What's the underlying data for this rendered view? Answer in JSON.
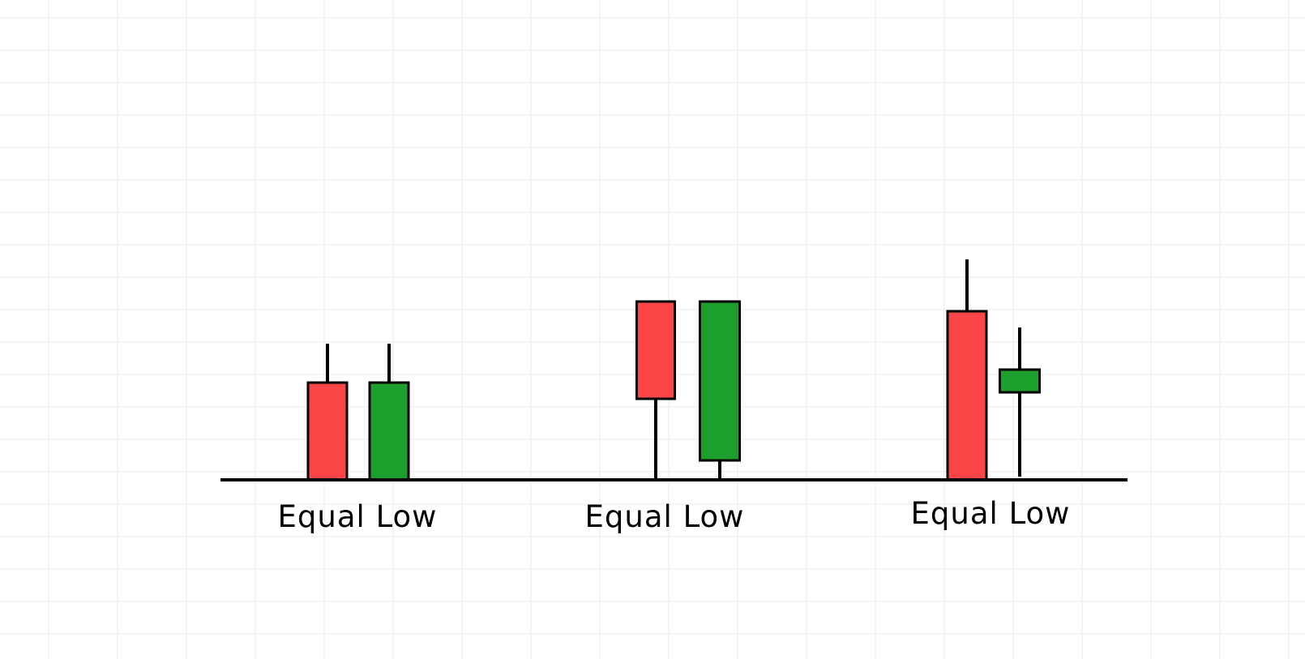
{
  "diagram": {
    "labels": [
      "Equal Low",
      "Equal Low",
      "Equal Low"
    ],
    "colors": {
      "bearish": "#fb4546",
      "bullish": "#1c9f2d",
      "outline": "#000000",
      "grid": "#ebebeb",
      "background": "#ffffff"
    },
    "groups": [
      {
        "name": "equal-low-1",
        "candles": [
          {
            "type": "bearish",
            "high": 42,
            "top": 30,
            "bottom": 0,
            "low": 0
          },
          {
            "type": "bullish",
            "high": 42,
            "top": 30,
            "bottom": 0,
            "low": 0
          }
        ]
      },
      {
        "name": "equal-low-2",
        "candles": [
          {
            "type": "bearish",
            "high": 55,
            "top": 55,
            "bottom": 25,
            "low": 0
          },
          {
            "type": "bullish",
            "high": 55,
            "top": 55,
            "bottom": 6,
            "low": 0
          }
        ]
      },
      {
        "name": "equal-low-3",
        "candles": [
          {
            "type": "bearish",
            "high": 68,
            "top": 52,
            "bottom": 0,
            "low": 0
          },
          {
            "type": "bullish",
            "high": 47,
            "top": 34,
            "bottom": 27,
            "low": 1
          }
        ]
      }
    ]
  }
}
